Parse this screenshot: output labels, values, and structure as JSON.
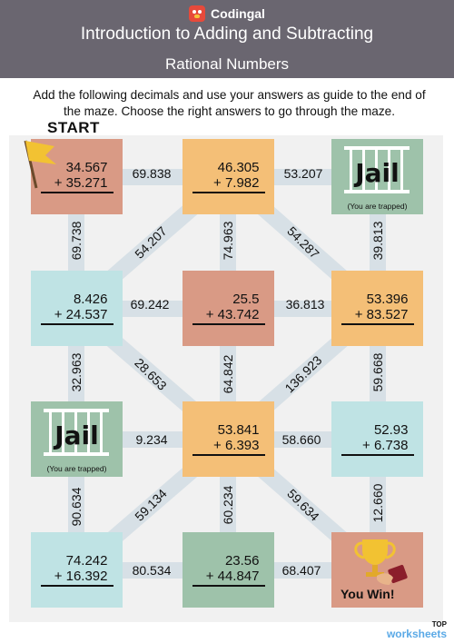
{
  "header": {
    "brand": "Codingal",
    "title_line1": "Introduction to Adding and Subtracting",
    "title_line2": "Rational Numbers"
  },
  "instructions": "Add the following decimals and use your answers as guide to the end of the maze. Choose the right answers to go through the maze.",
  "start_label": "START",
  "boxes": {
    "r1c1": {
      "a": "34.567",
      "b": "+ 35.271"
    },
    "r1c2": {
      "a": "46.305",
      "b": "+   7.982"
    },
    "r1c3": {
      "title": "Jail",
      "sub": "(You are trapped)"
    },
    "r2c1": {
      "a": "8.426",
      "b": "+ 24.537"
    },
    "r2c2": {
      "a": "25.5",
      "b": "+ 43.742"
    },
    "r2c3": {
      "a": "53.396",
      "b": "+ 83.527"
    },
    "r3c1": {
      "title": "Jail",
      "sub": "(You are trapped)"
    },
    "r3c2": {
      "a": "53.841",
      "b": "+   6.393"
    },
    "r3c3": {
      "a": "52.93",
      "b": "+   6.738"
    },
    "r4c1": {
      "a": "74.242",
      "b": "+ 16.392"
    },
    "r4c2": {
      "a": "23.56",
      "b": "+ 44.847"
    },
    "r4c3": {
      "title": "You Win!"
    }
  },
  "edges": {
    "h_r1_12": "69.838",
    "h_r1_23": "53.207",
    "h_r2_12": "69.242",
    "h_r2_23": "36.813",
    "h_r3_12": "9.234",
    "h_r3_23": "58.660",
    "h_r4_12": "80.534",
    "h_r4_23": "68.407",
    "v_c1_12": "69.738",
    "v_c2_12": "74.963",
    "v_c3_12": "39.813",
    "v_c1_23": "32.963",
    "v_c2_23": "64.842",
    "v_c3_23": "59.668",
    "v_c1_34": "90.634",
    "v_c2_34": "60.234",
    "v_c3_34": "12.660",
    "d_r12_a": "54.207",
    "d_r12_b": "54.287",
    "d_r23_a": "28.653",
    "d_r23_b": "136.923",
    "d_r34_a": "59.134",
    "d_r34_b": "59.634"
  },
  "footer": {
    "top": "TOP",
    "brand": "worksheets"
  },
  "colors": {
    "header": "#6a6670",
    "peach": "#d99a85",
    "orange": "#f4bf77",
    "light_blue": "#bfe3e4",
    "green": "#9ec2aa",
    "path": "#d7e0e6",
    "flag": "#f2c232"
  }
}
